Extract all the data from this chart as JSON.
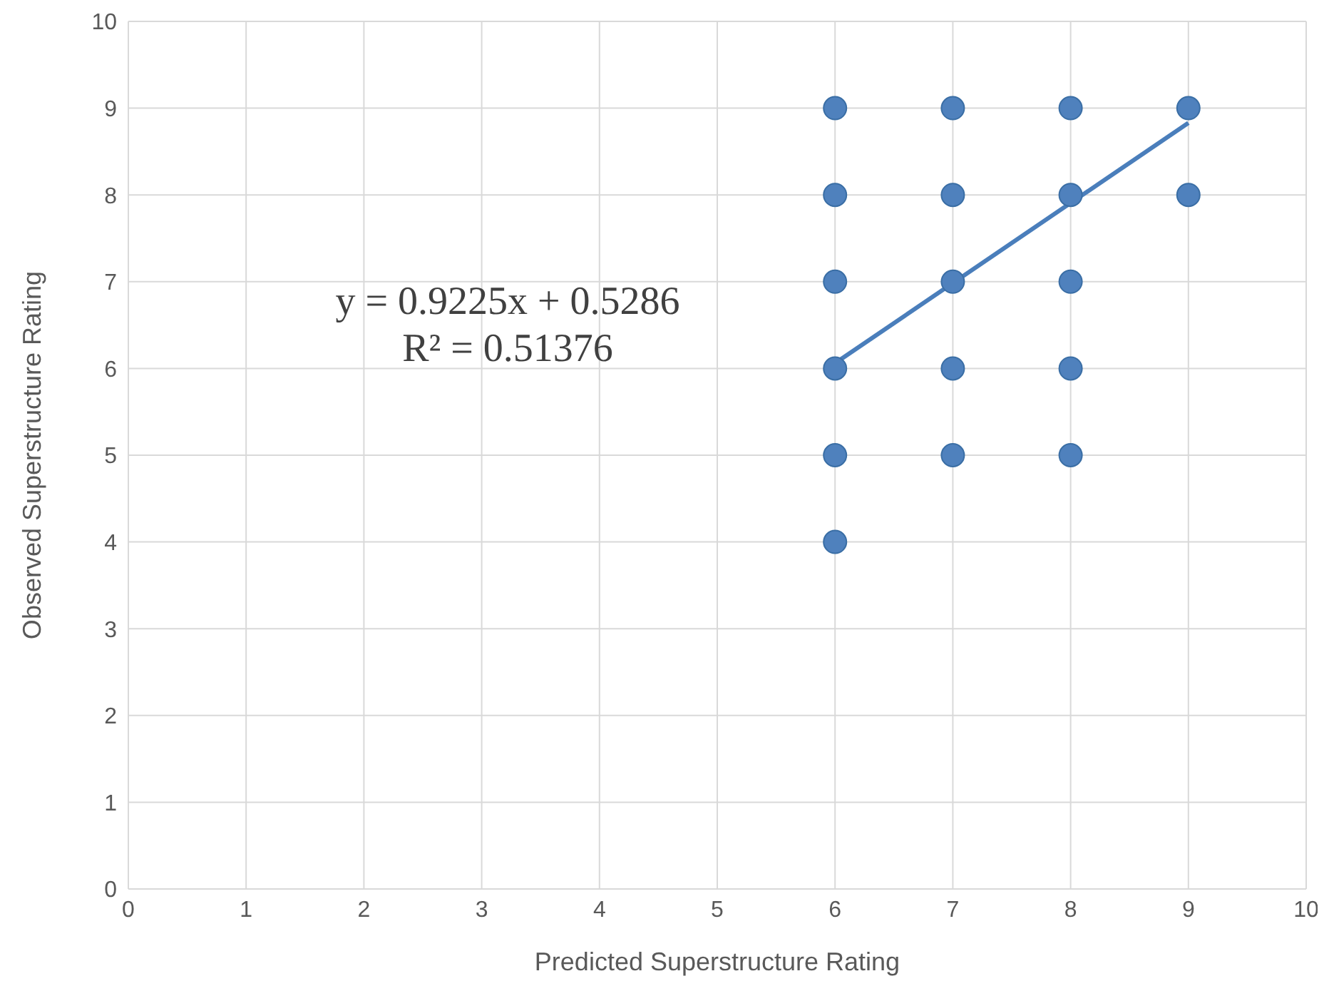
{
  "chart_data": {
    "type": "scatter",
    "xlabel": "Predicted Superstructure Rating",
    "ylabel": "Observed Superstructure Rating",
    "series": [
      {
        "type": "scatter",
        "marker": "circle",
        "color": "#4f81bd",
        "x": [
          6,
          6,
          6,
          6,
          6,
          6,
          7,
          7,
          7,
          7,
          7,
          8,
          8,
          8,
          8,
          8,
          9,
          9
        ],
        "values": [
          4,
          5,
          6,
          7,
          8,
          9,
          5,
          6,
          7,
          8,
          9,
          5,
          6,
          7,
          8,
          9,
          8,
          9
        ]
      },
      {
        "type": "line",
        "color": "#4a7ebb",
        "x": [
          6,
          9
        ],
        "values": [
          6.06,
          8.83
        ]
      }
    ],
    "xlim": [
      0,
      10
    ],
    "xticks": [
      0,
      1,
      2,
      3,
      4,
      5,
      6,
      7,
      8,
      9,
      10
    ],
    "ylim": [
      0,
      10
    ],
    "yticks": [
      0,
      1,
      2,
      3,
      4,
      5,
      6,
      7,
      8,
      9,
      10
    ],
    "grid": true,
    "line_style": "solid",
    "annotations": [
      "y = 0.9225x + 0.5286",
      "R² = 0.51376"
    ]
  }
}
